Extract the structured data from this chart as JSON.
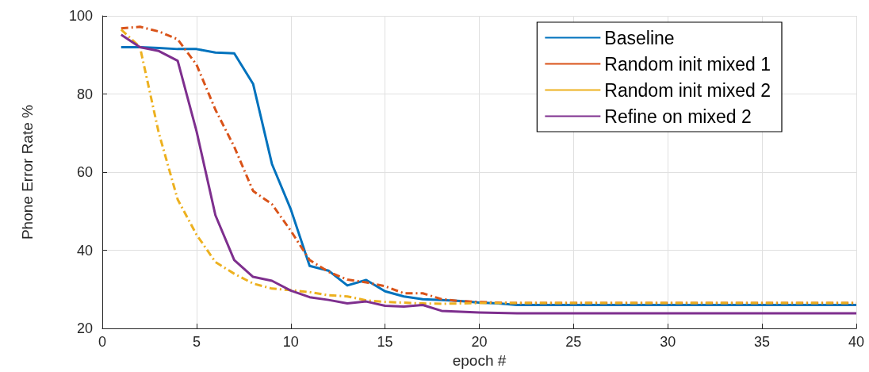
{
  "chart_data": {
    "type": "line",
    "xlabel": "epoch #",
    "ylabel": "Phone Error Rate %",
    "x": [
      1,
      2,
      3,
      4,
      5,
      6,
      7,
      8,
      9,
      10,
      11,
      12,
      13,
      14,
      15,
      16,
      17,
      18,
      19,
      20,
      21,
      22,
      23,
      24,
      25,
      26,
      27,
      28,
      29,
      30,
      31,
      32,
      33,
      34,
      35,
      36,
      37,
      38,
      39,
      40
    ],
    "xlim": [
      0,
      40
    ],
    "xticks": [
      0,
      5,
      10,
      15,
      20,
      25,
      30,
      35,
      40
    ],
    "ylim": [
      20,
      100
    ],
    "yticks": [
      20,
      40,
      60,
      80,
      100
    ],
    "grid": true,
    "legend": "top right",
    "marker": "none",
    "series": [
      {
        "name": "Baseline",
        "color": "#0072bd",
        "line_style": "solid",
        "values": [
          92,
          92,
          91.8,
          91.5,
          91.5,
          90.6,
          90.4,
          82.6,
          62.1,
          50.5,
          36,
          34.8,
          31,
          32.4,
          29.5,
          28.2,
          27.5,
          27.3,
          27,
          26.6,
          26.4,
          26,
          26,
          26,
          26,
          26,
          26,
          26,
          26,
          26,
          26,
          26,
          26,
          26,
          26,
          26,
          26,
          26,
          26,
          26
        ]
      },
      {
        "name": "Random init mixed 1",
        "color": "#d95319",
        "line_style": "dashed",
        "values": [
          96.8,
          97.2,
          96,
          94,
          87.5,
          76,
          66.5,
          55.2,
          51.8,
          45,
          37.5,
          34.5,
          32.5,
          31.8,
          30.8,
          29,
          29,
          27.5,
          27,
          26.8,
          26.6,
          26.5,
          26.5,
          26.5,
          26.5,
          26.5,
          26.5,
          26.5,
          26.5,
          26.5,
          26.5,
          26.5,
          26.5,
          26.5,
          26.5,
          26.5,
          26.5,
          26.5,
          26.5,
          26.5
        ]
      },
      {
        "name": "Random init mixed 2",
        "color": "#edb120",
        "line_style": "dashed",
        "values": [
          96.5,
          92,
          70,
          53,
          44,
          37,
          34,
          31.5,
          30.2,
          29.8,
          29.3,
          28.5,
          28.2,
          27.2,
          26.8,
          26.6,
          26.4,
          26.3,
          26.4,
          26.5,
          26.5,
          26.5,
          26.5,
          26.5,
          26.5,
          26.5,
          26.5,
          26.5,
          26.5,
          26.5,
          26.5,
          26.5,
          26.5,
          26.5,
          26.5,
          26.5,
          26.5,
          26.5,
          26.5,
          26.5
        ]
      },
      {
        "name": "Refine on mixed 2",
        "color": "#7e2f8e",
        "line_style": "solid",
        "values": [
          95.2,
          92,
          91,
          88.5,
          70.5,
          49,
          37.5,
          33.2,
          32.2,
          29.7,
          28,
          27.3,
          26.4,
          26.9,
          25.8,
          25.6,
          26,
          24.5,
          24.3,
          24.1,
          24,
          23.9,
          23.9,
          23.9,
          23.9,
          23.9,
          23.9,
          23.9,
          23.9,
          23.9,
          23.9,
          23.9,
          23.9,
          23.9,
          23.9,
          23.9,
          23.9,
          23.9,
          23.9,
          23.9
        ]
      }
    ]
  }
}
